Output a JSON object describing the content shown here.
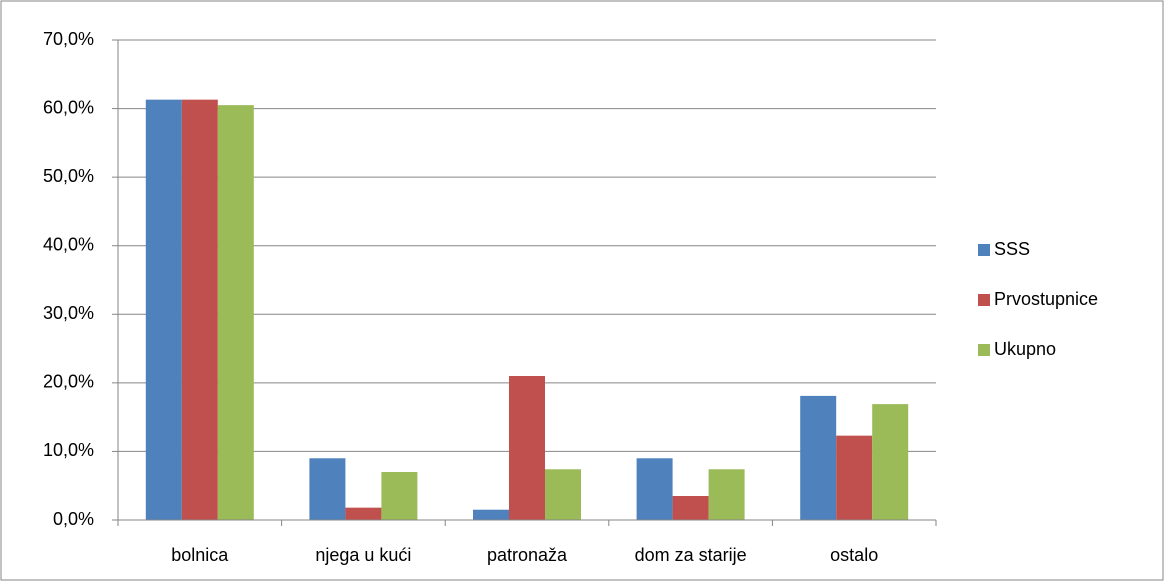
{
  "chart_data": {
    "type": "bar",
    "categories": [
      "bolnica",
      "njega u kući",
      "patronaža",
      "dom za starije",
      "ostalo"
    ],
    "series": [
      {
        "name": "SSS",
        "color": "#4f81bd",
        "values": [
          61.3,
          9.0,
          1.5,
          9.0,
          18.1
        ]
      },
      {
        "name": "Prvostupnice",
        "color": "#c0504d",
        "values": [
          61.3,
          1.8,
          21.0,
          3.5,
          12.3
        ]
      },
      {
        "name": "Ukupno",
        "color": "#9bbb59",
        "values": [
          60.5,
          7.0,
          7.4,
          7.4,
          16.9
        ]
      }
    ],
    "ylim": [
      0,
      70
    ],
    "yticks": [
      {
        "value": 0,
        "label": "0,0%"
      },
      {
        "value": 10,
        "label": "10,0%"
      },
      {
        "value": 20,
        "label": "20,0%"
      },
      {
        "value": 30,
        "label": "30,0%"
      },
      {
        "value": 40,
        "label": "40,0%"
      },
      {
        "value": 50,
        "label": "50,0%"
      },
      {
        "value": 60,
        "label": "60,0%"
      },
      {
        "value": 70,
        "label": "70,0%"
      }
    ],
    "grid": true,
    "legend": "right"
  }
}
